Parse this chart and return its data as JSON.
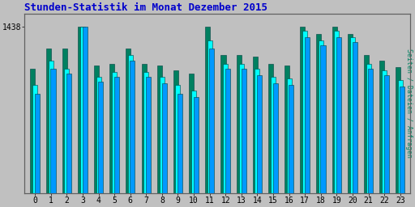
{
  "title": "Stunden-Statistik im Monat Dezember 2015",
  "title_color": "#0000CC",
  "ylabel_right": "Seiten / Dateien / Anfragen",
  "ytick_label": "1438",
  "background_color": "#C0C0C0",
  "plot_bg_color": "#C0C0C0",
  "cyan_color": "#00FFFF",
  "blue_color": "#0099FF",
  "green_color": "#008060",
  "edge_color": "#004040",
  "hours": [
    0,
    1,
    2,
    3,
    4,
    5,
    6,
    7,
    8,
    9,
    10,
    11,
    12,
    13,
    14,
    15,
    16,
    17,
    18,
    19,
    20,
    21,
    22,
    23
  ],
  "cyan_vals": [
    65,
    80,
    75,
    100,
    70,
    73,
    83,
    73,
    70,
    65,
    62,
    92,
    78,
    78,
    75,
    70,
    69,
    98,
    92,
    98,
    94,
    78,
    74,
    68
  ],
  "blue_vals": [
    60,
    75,
    72,
    100,
    67,
    70,
    80,
    70,
    66,
    60,
    58,
    87,
    75,
    75,
    71,
    66,
    65,
    94,
    89,
    94,
    91,
    75,
    71,
    64
  ],
  "green_vals": [
    75,
    87,
    87,
    100,
    77,
    78,
    87,
    78,
    77,
    74,
    72,
    100,
    83,
    83,
    82,
    78,
    77,
    100,
    96,
    100,
    96,
    83,
    80,
    76
  ],
  "ymin": 0,
  "ymax": 100,
  "figsize": [
    5.12,
    2.56
  ],
  "dpi": 100
}
